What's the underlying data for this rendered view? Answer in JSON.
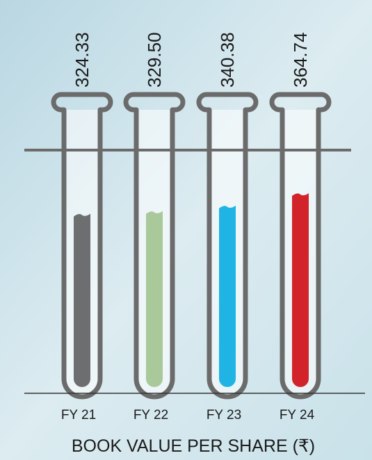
{
  "chart_data": {
    "type": "bar",
    "title": "BOOK VALUE PER SHARE (₹)",
    "categories": [
      "FY 21",
      "FY 22",
      "FY 23",
      "FY 24"
    ],
    "values": [
      324.33,
      329.5,
      340.38,
      364.74
    ],
    "value_labels": [
      "324.33",
      "329.50",
      "340.38",
      "364.74"
    ],
    "colors": [
      "#6d6e70",
      "#a9c99b",
      "#1fb4e3",
      "#d2232a"
    ]
  }
}
